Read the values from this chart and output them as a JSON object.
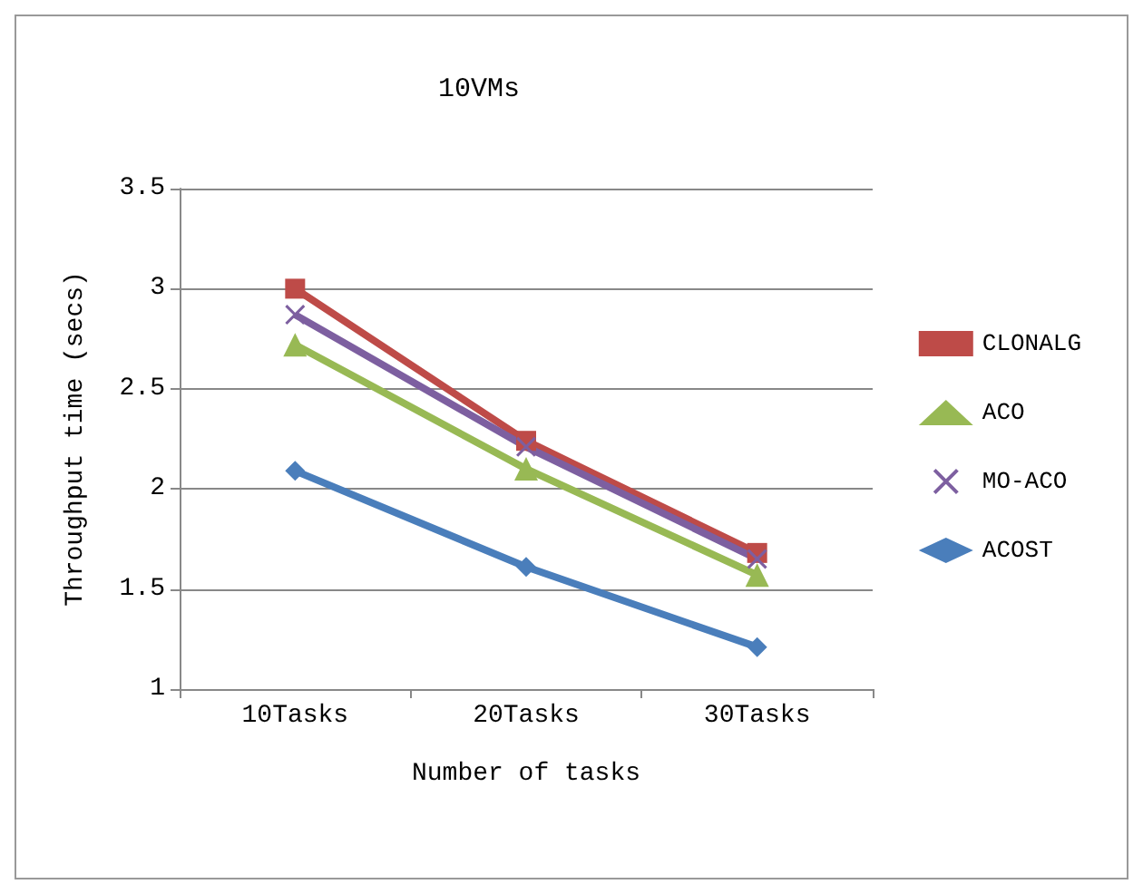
{
  "chart_data": {
    "type": "line",
    "title": "10VMs",
    "xlabel": "Number of tasks",
    "ylabel": "Throughput time (secs)",
    "categories": [
      "10Tasks",
      "20Tasks",
      "30Tasks"
    ],
    "series": [
      {
        "name": "CLONALG",
        "color": "#be4b48",
        "marker": "square",
        "values": [
          3.0,
          2.24,
          1.68
        ]
      },
      {
        "name": "ACO",
        "color": "#98b954",
        "marker": "triangle",
        "values": [
          2.72,
          2.1,
          1.57
        ]
      },
      {
        "name": "MO-ACO",
        "color": "#7d5fa0",
        "marker": "cross",
        "values": [
          2.87,
          2.21,
          1.65
        ]
      },
      {
        "name": "ACOST",
        "color": "#4a7ebb",
        "marker": "diamond",
        "values": [
          2.09,
          1.61,
          1.21
        ]
      }
    ],
    "ylim": [
      1,
      3.5
    ],
    "yticks": [
      1,
      1.5,
      2,
      2.5,
      3,
      3.5
    ],
    "grid": "y",
    "legend": "right"
  }
}
